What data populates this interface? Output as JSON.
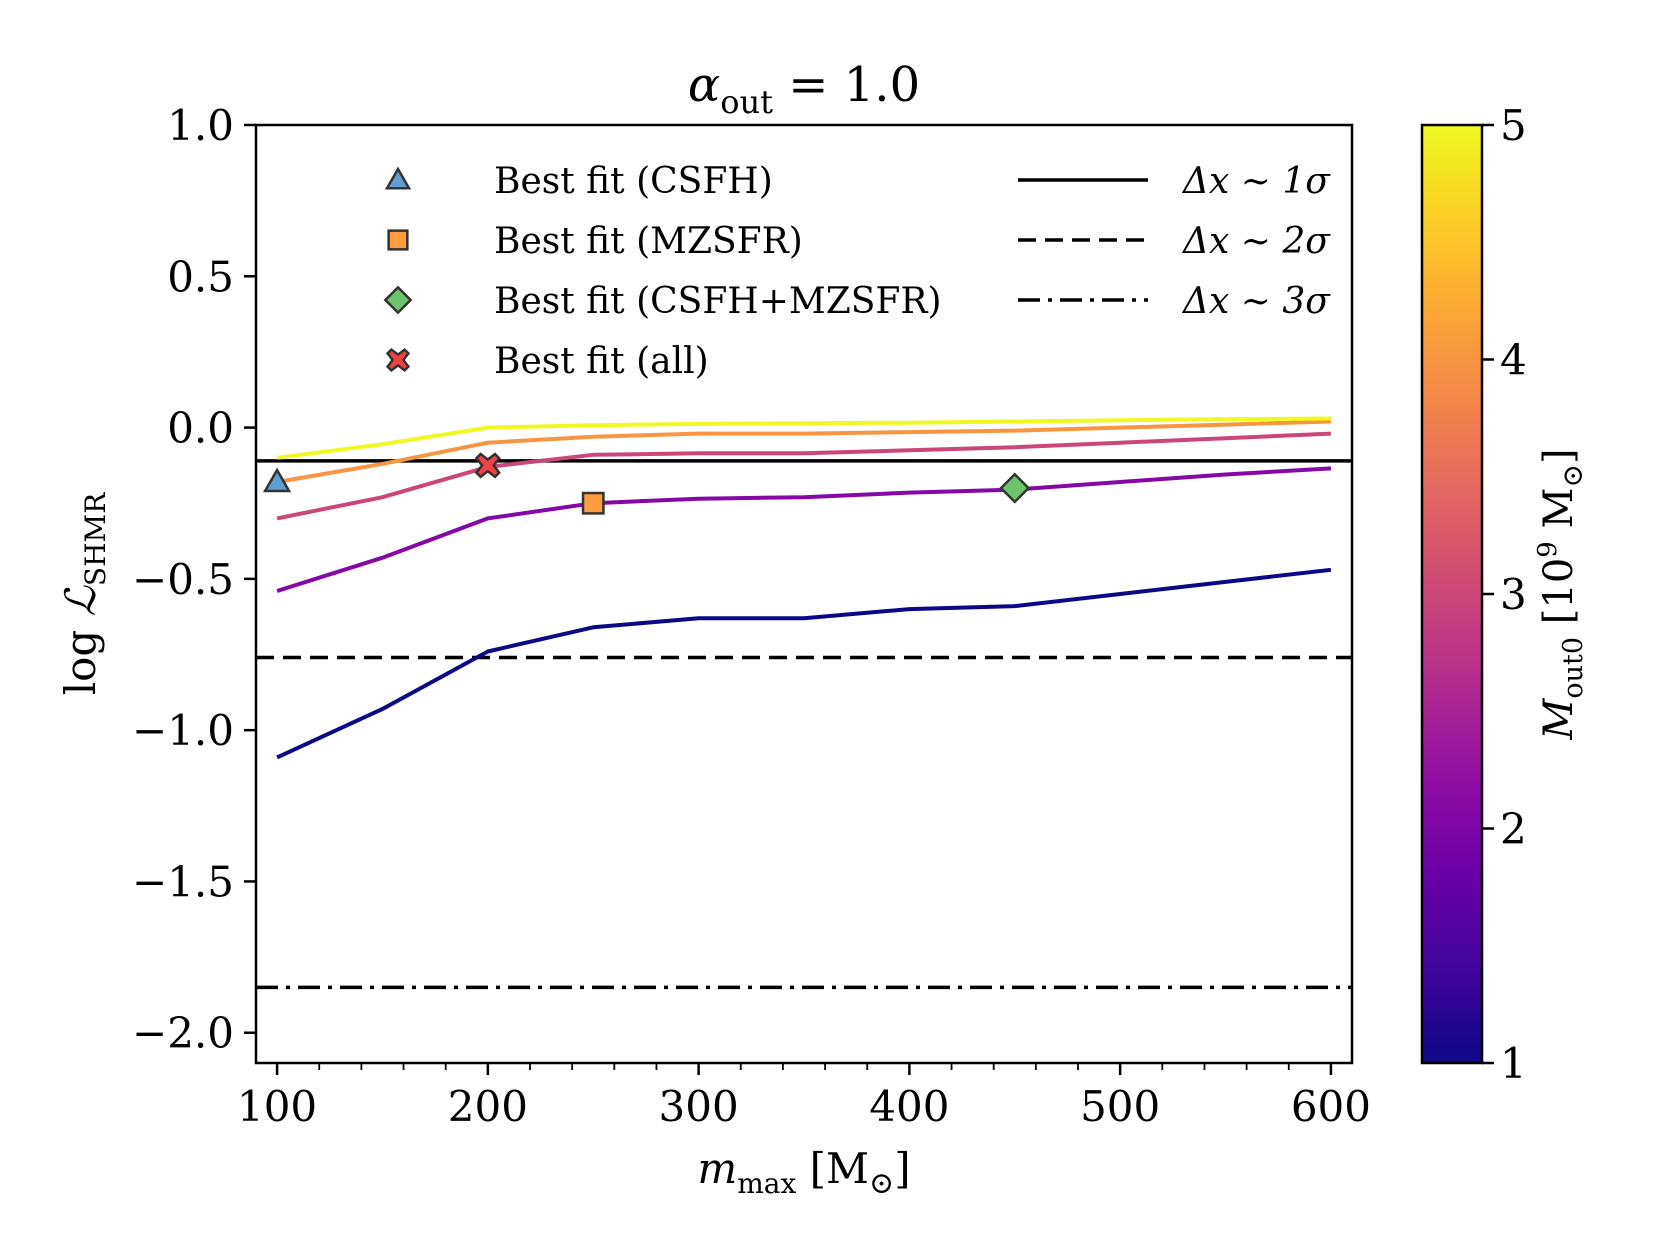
{
  "chart_data": {
    "type": "line",
    "title": {
      "symbol": "α",
      "sub": "out",
      "rest": " = 1.0"
    },
    "xlabel": {
      "symbol": "m",
      "sub": "max",
      "rest": " [M",
      "sun": "⊙",
      "close": "]"
    },
    "ylabel": {
      "pre": "log ",
      "symbol": "ℒ",
      "sub": "SHMR"
    },
    "xlim": [
      90,
      610
    ],
    "ylim": [
      -2.1,
      1.0
    ],
    "xticks": [
      100,
      200,
      300,
      400,
      500,
      600
    ],
    "xtick_labels": [
      "100",
      "200",
      "300",
      "400",
      "500",
      "600"
    ],
    "xminor": [
      120,
      140,
      160,
      180,
      220,
      240,
      260,
      280,
      320,
      340,
      360,
      380,
      420,
      440,
      460,
      480,
      520,
      540,
      560,
      580
    ],
    "yticks": [
      1.0,
      0.5,
      0.0,
      -0.5,
      -1.0,
      -1.5,
      -2.0
    ],
    "ytick_labels": [
      "1.0",
      "0.5",
      "0.0",
      "−0.5",
      "−1.0",
      "−1.5",
      "−2.0"
    ],
    "x": [
      100,
      150,
      200,
      250,
      300,
      350,
      400,
      450,
      500,
      550,
      600
    ],
    "series": [
      {
        "name": "M_out0 = 1",
        "m_out0": 1,
        "color": "#0d0887",
        "values": [
          -1.09,
          -0.93,
          -0.74,
          -0.66,
          -0.63,
          -0.63,
          -0.6,
          -0.59,
          -0.55,
          -0.51,
          -0.47
        ]
      },
      {
        "name": "M_out0 = 2",
        "m_out0": 2,
        "color": "#8507a5",
        "values": [
          -0.54,
          -0.43,
          -0.3,
          -0.25,
          -0.235,
          -0.23,
          -0.215,
          -0.205,
          -0.18,
          -0.155,
          -0.135
        ]
      },
      {
        "name": "M_out0 = 3",
        "m_out0": 3,
        "color": "#cb4679",
        "values": [
          -0.3,
          -0.23,
          -0.13,
          -0.09,
          -0.085,
          -0.085,
          -0.075,
          -0.065,
          -0.05,
          -0.035,
          -0.02
        ]
      },
      {
        "name": "M_out0 = 4",
        "m_out0": 4,
        "color": "#f89540",
        "values": [
          -0.18,
          -0.12,
          -0.05,
          -0.03,
          -0.02,
          -0.02,
          -0.015,
          -0.01,
          0.0,
          0.01,
          0.02
        ]
      },
      {
        "name": "M_out0 = 5",
        "m_out0": 5,
        "color": "#f0f921",
        "values": [
          -0.1,
          -0.055,
          0.0,
          0.008,
          0.012,
          0.014,
          0.016,
          0.02,
          0.024,
          0.028,
          0.03
        ]
      }
    ],
    "reference_lines": [
      {
        "label": "Δx ∼ 1σ",
        "y": -0.11,
        "style": "solid"
      },
      {
        "label": "Δx ∼ 2σ",
        "y": -0.76,
        "style": "dashed"
      },
      {
        "label": "Δx ∼ 3σ",
        "y": -1.85,
        "style": "dashdot"
      }
    ],
    "best_fits": [
      {
        "label": "Best fit (CSFH)",
        "marker": "triangle",
        "color": "#5f9ed1",
        "x": 100,
        "y": -0.18
      },
      {
        "label": "Best fit (MZSFR)",
        "marker": "square",
        "color": "#ff9e40",
        "x": 250,
        "y": -0.25
      },
      {
        "label": "Best fit (CSFH+MZSFR)",
        "marker": "diamond",
        "color": "#6cc46c",
        "x": 450,
        "y": -0.2
      },
      {
        "label": "Best fit (all)",
        "marker": "x",
        "color": "#f04040",
        "x": 200,
        "y": -0.125
      }
    ],
    "colorbar": {
      "label": {
        "symbol": "M",
        "sub": "out0",
        "rest": " [10",
        "sup": "9",
        "unit": " M",
        "sun": "⊙",
        "close": "]"
      },
      "range": [
        1,
        5
      ],
      "ticks": [
        1,
        2,
        3,
        4,
        5
      ],
      "tick_labels": [
        "1",
        "2",
        "3",
        "4",
        "5"
      ],
      "colormap": [
        "#0d0887",
        "#41049d",
        "#6a00a8",
        "#8f0da4",
        "#b12a90",
        "#cc4778",
        "#e16462",
        "#f2844b",
        "#fca636",
        "#fcce25",
        "#f0f921"
      ]
    },
    "legend_position": "top",
    "grid": false
  }
}
